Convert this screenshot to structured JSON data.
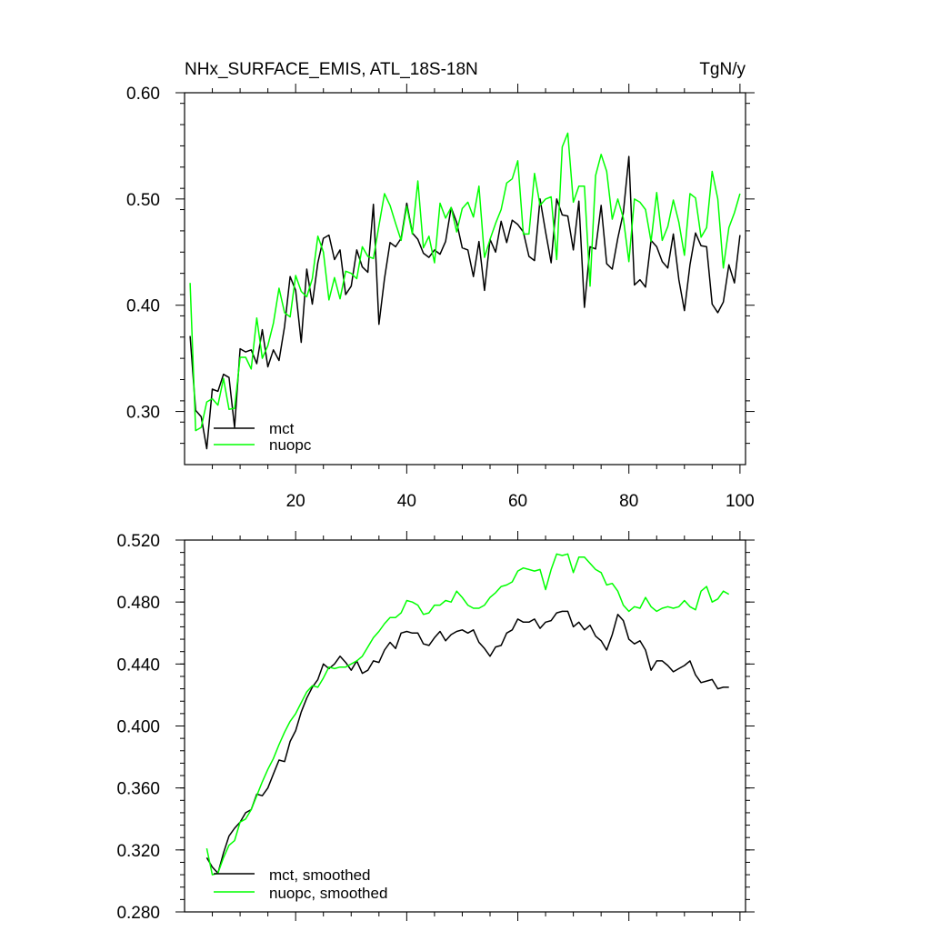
{
  "chart_data": [
    {
      "type": "line",
      "title": "NHx_SURFACE_EMIS, ATL_18S-18N",
      "units": "TgN/y",
      "xlabel": "",
      "ylabel": "",
      "xlim": [
        0,
        101
      ],
      "ylim": [
        0.25,
        0.6
      ],
      "xticks": [
        20,
        40,
        60,
        80,
        100
      ],
      "xtick_labels": [
        "20",
        "40",
        "60",
        "80",
        "100"
      ],
      "yticks": [
        0.3,
        0.4,
        0.5,
        0.6
      ],
      "ytick_labels": [
        "0.30",
        "0.40",
        "0.50",
        "0.60"
      ],
      "legend": [
        "mct",
        "nuopc"
      ],
      "legend_position": "bottom-left",
      "series": [
        {
          "name": "mct",
          "color": "#000000",
          "x": [
            1,
            2,
            3,
            4,
            5,
            6,
            7,
            8,
            9,
            10,
            11,
            12,
            13,
            14,
            15,
            16,
            17,
            18,
            19,
            20,
            21,
            22,
            23,
            24,
            25,
            26,
            27,
            28,
            29,
            30,
            31,
            32,
            33,
            34,
            35,
            36,
            37,
            38,
            39,
            40,
            41,
            42,
            43,
            44,
            45,
            46,
            47,
            48,
            49,
            50,
            51,
            52,
            53,
            54,
            55,
            56,
            57,
            58,
            59,
            60,
            61,
            62,
            63,
            64,
            65,
            66,
            67,
            68,
            69,
            70,
            71,
            72,
            73,
            74,
            75,
            76,
            77,
            78,
            79,
            80,
            81,
            82,
            83,
            84,
            85,
            86,
            87,
            88,
            89,
            90,
            91,
            92,
            93,
            94,
            95,
            96,
            97,
            98,
            99,
            100
          ],
          "values": [
            0.371,
            0.301,
            0.295,
            0.265,
            0.321,
            0.319,
            0.335,
            0.332,
            0.285,
            0.359,
            0.356,
            0.358,
            0.345,
            0.377,
            0.342,
            0.358,
            0.348,
            0.38,
            0.427,
            0.414,
            0.365,
            0.434,
            0.401,
            0.44,
            0.463,
            0.466,
            0.443,
            0.452,
            0.41,
            0.418,
            0.452,
            0.436,
            0.431,
            0.495,
            0.382,
            0.425,
            0.459,
            0.455,
            0.463,
            0.496,
            0.468,
            0.462,
            0.449,
            0.445,
            0.452,
            0.448,
            0.46,
            0.492,
            0.478,
            0.454,
            0.452,
            0.427,
            0.46,
            0.414,
            0.462,
            0.45,
            0.479,
            0.459,
            0.48,
            0.476,
            0.469,
            0.446,
            0.442,
            0.5,
            0.469,
            0.44,
            0.5,
            0.485,
            0.484,
            0.452,
            0.498,
            0.398,
            0.455,
            0.453,
            0.494,
            0.439,
            0.434,
            0.463,
            0.487,
            0.54,
            0.419,
            0.424,
            0.417,
            0.461,
            0.455,
            0.441,
            0.435,
            0.467,
            0.424,
            0.395,
            0.438,
            0.468,
            0.456,
            0.455,
            0.401,
            0.393,
            0.403,
            0.438,
            0.421,
            0.466
          ]
        },
        {
          "name": "nuopc",
          "color": "#00ff00",
          "x": [
            1,
            2,
            3,
            4,
            5,
            6,
            7,
            8,
            9,
            10,
            11,
            12,
            13,
            14,
            15,
            16,
            17,
            18,
            19,
            20,
            21,
            22,
            23,
            24,
            25,
            26,
            27,
            28,
            29,
            30,
            31,
            32,
            33,
            34,
            35,
            36,
            37,
            38,
            39,
            40,
            41,
            42,
            43,
            44,
            45,
            46,
            47,
            48,
            49,
            50,
            51,
            52,
            53,
            54,
            55,
            56,
            57,
            58,
            59,
            60,
            61,
            62,
            63,
            64,
            65,
            66,
            67,
            68,
            69,
            70,
            71,
            72,
            73,
            74,
            75,
            76,
            77,
            78,
            79,
            80,
            81,
            82,
            83,
            84,
            85,
            86,
            87,
            88,
            89,
            90,
            91,
            92,
            93,
            94,
            95,
            96,
            97,
            98,
            99,
            100
          ],
          "values": [
            0.421,
            0.282,
            0.285,
            0.309,
            0.312,
            0.306,
            0.331,
            0.302,
            0.303,
            0.351,
            0.351,
            0.34,
            0.388,
            0.35,
            0.362,
            0.383,
            0.416,
            0.393,
            0.389,
            0.428,
            0.413,
            0.408,
            0.425,
            0.465,
            0.45,
            0.405,
            0.426,
            0.406,
            0.432,
            0.43,
            0.425,
            0.455,
            0.446,
            0.444,
            0.475,
            0.505,
            0.494,
            0.477,
            0.461,
            0.493,
            0.467,
            0.517,
            0.454,
            0.465,
            0.44,
            0.496,
            0.482,
            0.492,
            0.469,
            0.491,
            0.497,
            0.483,
            0.512,
            0.445,
            0.462,
            0.477,
            0.49,
            0.515,
            0.519,
            0.536,
            0.467,
            0.467,
            0.524,
            0.494,
            0.5,
            0.502,
            0.443,
            0.549,
            0.562,
            0.497,
            0.512,
            0.512,
            0.418,
            0.522,
            0.542,
            0.526,
            0.481,
            0.5,
            0.482,
            0.441,
            0.5,
            0.497,
            0.49,
            0.46,
            0.506,
            0.461,
            0.474,
            0.499,
            0.478,
            0.447,
            0.505,
            0.501,
            0.464,
            0.473,
            0.526,
            0.5,
            0.435,
            0.473,
            0.487,
            0.505
          ]
        }
      ]
    },
    {
      "type": "line",
      "title": "",
      "xlabel": "",
      "ylabel": "",
      "xlim": [
        0,
        101
      ],
      "ylim": [
        0.28,
        0.52
      ],
      "xticks": [
        20,
        40,
        60,
        80,
        100
      ],
      "yticks": [
        0.28,
        0.32,
        0.36,
        0.4,
        0.44,
        0.48,
        0.52
      ],
      "ytick_labels": [
        "0.280",
        "0.320",
        "0.360",
        "0.400",
        "0.440",
        "0.480",
        "0.520"
      ],
      "legend": [
        "mct, smoothed",
        "nuopc, smoothed"
      ],
      "legend_position": "bottom-left",
      "series": [
        {
          "name": "mct, smoothed",
          "color": "#000000",
          "x": [
            4,
            5,
            6,
            7,
            8,
            9,
            10,
            11,
            12,
            13,
            14,
            15,
            16,
            17,
            18,
            19,
            20,
            21,
            22,
            23,
            24,
            25,
            26,
            27,
            28,
            29,
            30,
            31,
            32,
            33,
            34,
            35,
            36,
            37,
            38,
            39,
            40,
            41,
            42,
            43,
            44,
            45,
            46,
            47,
            48,
            49,
            50,
            51,
            52,
            53,
            54,
            55,
            56,
            57,
            58,
            59,
            60,
            61,
            62,
            63,
            64,
            65,
            66,
            67,
            68,
            69,
            70,
            71,
            72,
            73,
            74,
            75,
            76,
            77,
            78,
            79,
            80,
            81,
            82,
            83,
            84,
            85,
            86,
            87,
            88,
            89,
            90,
            91,
            92,
            93,
            94,
            95,
            96,
            97,
            98
          ],
          "values": [
            0.315,
            0.309,
            0.305,
            0.318,
            0.329,
            0.334,
            0.338,
            0.344,
            0.346,
            0.356,
            0.355,
            0.36,
            0.369,
            0.378,
            0.377,
            0.39,
            0.397,
            0.409,
            0.418,
            0.425,
            0.43,
            0.44,
            0.437,
            0.44,
            0.445,
            0.441,
            0.436,
            0.442,
            0.434,
            0.436,
            0.442,
            0.441,
            0.449,
            0.454,
            0.45,
            0.46,
            0.461,
            0.46,
            0.46,
            0.453,
            0.452,
            0.457,
            0.461,
            0.455,
            0.459,
            0.461,
            0.462,
            0.46,
            0.462,
            0.454,
            0.45,
            0.445,
            0.451,
            0.452,
            0.46,
            0.462,
            0.469,
            0.467,
            0.467,
            0.469,
            0.463,
            0.467,
            0.468,
            0.473,
            0.474,
            0.474,
            0.464,
            0.467,
            0.462,
            0.465,
            0.458,
            0.455,
            0.449,
            0.459,
            0.472,
            0.468,
            0.456,
            0.453,
            0.455,
            0.449,
            0.436,
            0.442,
            0.442,
            0.439,
            0.435,
            0.437,
            0.439,
            0.442,
            0.433,
            0.428,
            0.429,
            0.43,
            0.424,
            0.425,
            0.425
          ]
        },
        {
          "name": "nuopc, smoothed",
          "color": "#00ff00",
          "x": [
            4,
            5,
            6,
            7,
            8,
            9,
            10,
            11,
            12,
            13,
            14,
            15,
            16,
            17,
            18,
            19,
            20,
            21,
            22,
            23,
            24,
            25,
            26,
            27,
            28,
            29,
            30,
            31,
            32,
            33,
            34,
            35,
            36,
            37,
            38,
            39,
            40,
            41,
            42,
            43,
            44,
            45,
            46,
            47,
            48,
            49,
            50,
            51,
            52,
            53,
            54,
            55,
            56,
            57,
            58,
            59,
            60,
            61,
            62,
            63,
            64,
            65,
            66,
            67,
            68,
            69,
            70,
            71,
            72,
            73,
            74,
            75,
            76,
            77,
            78,
            79,
            80,
            81,
            82,
            83,
            84,
            85,
            86,
            87,
            88,
            89,
            90,
            91,
            92,
            93,
            94,
            95,
            96,
            97,
            98
          ],
          "values": [
            0.321,
            0.304,
            0.305,
            0.315,
            0.323,
            0.326,
            0.338,
            0.34,
            0.346,
            0.355,
            0.364,
            0.372,
            0.379,
            0.388,
            0.396,
            0.403,
            0.408,
            0.415,
            0.422,
            0.426,
            0.425,
            0.431,
            0.438,
            0.437,
            0.438,
            0.438,
            0.44,
            0.442,
            0.445,
            0.451,
            0.457,
            0.461,
            0.466,
            0.47,
            0.47,
            0.473,
            0.481,
            0.48,
            0.478,
            0.472,
            0.473,
            0.478,
            0.478,
            0.481,
            0.48,
            0.487,
            0.483,
            0.478,
            0.476,
            0.476,
            0.478,
            0.483,
            0.486,
            0.49,
            0.491,
            0.493,
            0.5,
            0.502,
            0.501,
            0.5,
            0.501,
            0.488,
            0.501,
            0.511,
            0.51,
            0.511,
            0.499,
            0.509,
            0.509,
            0.505,
            0.501,
            0.499,
            0.491,
            0.492,
            0.487,
            0.478,
            0.474,
            0.477,
            0.476,
            0.483,
            0.477,
            0.474,
            0.476,
            0.477,
            0.476,
            0.477,
            0.481,
            0.477,
            0.475,
            0.487,
            0.49,
            0.48,
            0.482,
            0.487,
            0.485
          ]
        }
      ]
    }
  ]
}
